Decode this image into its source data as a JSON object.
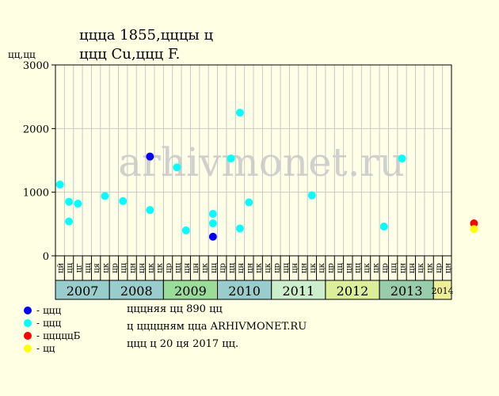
{
  "title": {
    "line1": "цццa 1855,цццы ц",
    "line2": "ццц Cu,ццц F."
  },
  "y_unit_label": "цц,цц",
  "watermark": "arhivmonet.ru",
  "colors": {
    "background": "#ffffe3",
    "plot_background": "#ffffe8",
    "grid": "#c8c8c8",
    "xf": "#0000ff",
    "vf": "#00ffff",
    "unc_red": "#ff0000",
    "unc_yellow": "#ffff00",
    "watermark": "#c8c8c8"
  },
  "chart_data": {
    "type": "scatter",
    "ylim": [
      0,
      3000
    ],
    "y_ticks": [
      "0",
      "1000",
      "2000",
      "3000"
    ],
    "months": [
      "цй",
      "цц",
      "цг",
      "цц",
      "ця",
      "цк",
      "цр",
      "цц",
      "цн",
      "цн",
      "цк",
      "цк",
      "цр",
      "цц",
      "цн",
      "цн",
      "цк",
      "цц",
      "цр",
      "цц",
      "цн",
      "цн",
      "цк",
      "цк",
      "цр",
      "цц",
      "цн",
      "цн",
      "цк",
      "цк",
      "цр",
      "цц",
      "цн",
      "цц",
      "цк",
      "цк",
      "цр",
      "цц",
      "цн",
      "цн",
      "цк",
      "цк",
      "цр",
      "цн"
    ],
    "years": [
      {
        "label": "2007",
        "span": 6,
        "color": "#99cccc"
      },
      {
        "label": "2008",
        "span": 6,
        "color": "#99cccc"
      },
      {
        "label": "2009",
        "span": 6,
        "color": "#99dd99"
      },
      {
        "label": "2010",
        "span": 6,
        "color": "#99cccc"
      },
      {
        "label": "2011",
        "span": 6,
        "color": "#cceecc"
      },
      {
        "label": "2012",
        "span": 6,
        "color": "#ddee99"
      },
      {
        "label": "2013",
        "span": 6,
        "color": "#99ccaa"
      },
      {
        "label": "2014",
        "span": 2,
        "color": "#eeee99"
      }
    ],
    "series": [
      {
        "name": "ццц",
        "color": "#0000ff",
        "points": [
          [
            10,
            1560
          ],
          [
            17,
            300
          ]
        ]
      },
      {
        "name": "ццц",
        "color": "#00ffff",
        "points": [
          [
            0,
            1120
          ],
          [
            1,
            850
          ],
          [
            1,
            540
          ],
          [
            2,
            820
          ],
          [
            5,
            940
          ],
          [
            7,
            860
          ],
          [
            10,
            720
          ],
          [
            13,
            1390
          ],
          [
            14,
            400
          ],
          [
            17,
            510
          ],
          [
            17,
            660
          ],
          [
            19,
            1530
          ],
          [
            20,
            2250
          ],
          [
            20,
            430
          ],
          [
            21,
            840
          ],
          [
            28,
            950
          ],
          [
            36,
            460
          ],
          [
            38,
            1530
          ]
        ]
      },
      {
        "name": "цццццБ",
        "color": "#ff0000",
        "points": [
          [
            46,
            510
          ]
        ]
      },
      {
        "name": "цц",
        "color": "#ffff00",
        "points": [
          [
            46,
            420
          ]
        ]
      }
    ]
  },
  "legend": [
    {
      "label": "ццц",
      "color": "#0000ff"
    },
    {
      "label": "ццц",
      "color": "#00ffff"
    },
    {
      "label": "цццццБ",
      "color": "#ff0000"
    },
    {
      "label": "цц",
      "color": "#ffff00"
    }
  ],
  "notes": [
    "цццняя цц 890 цц",
    "ц ццццням цца ARHIVMONET.RU",
    "ццц ц 20 ця 2017 цц."
  ]
}
